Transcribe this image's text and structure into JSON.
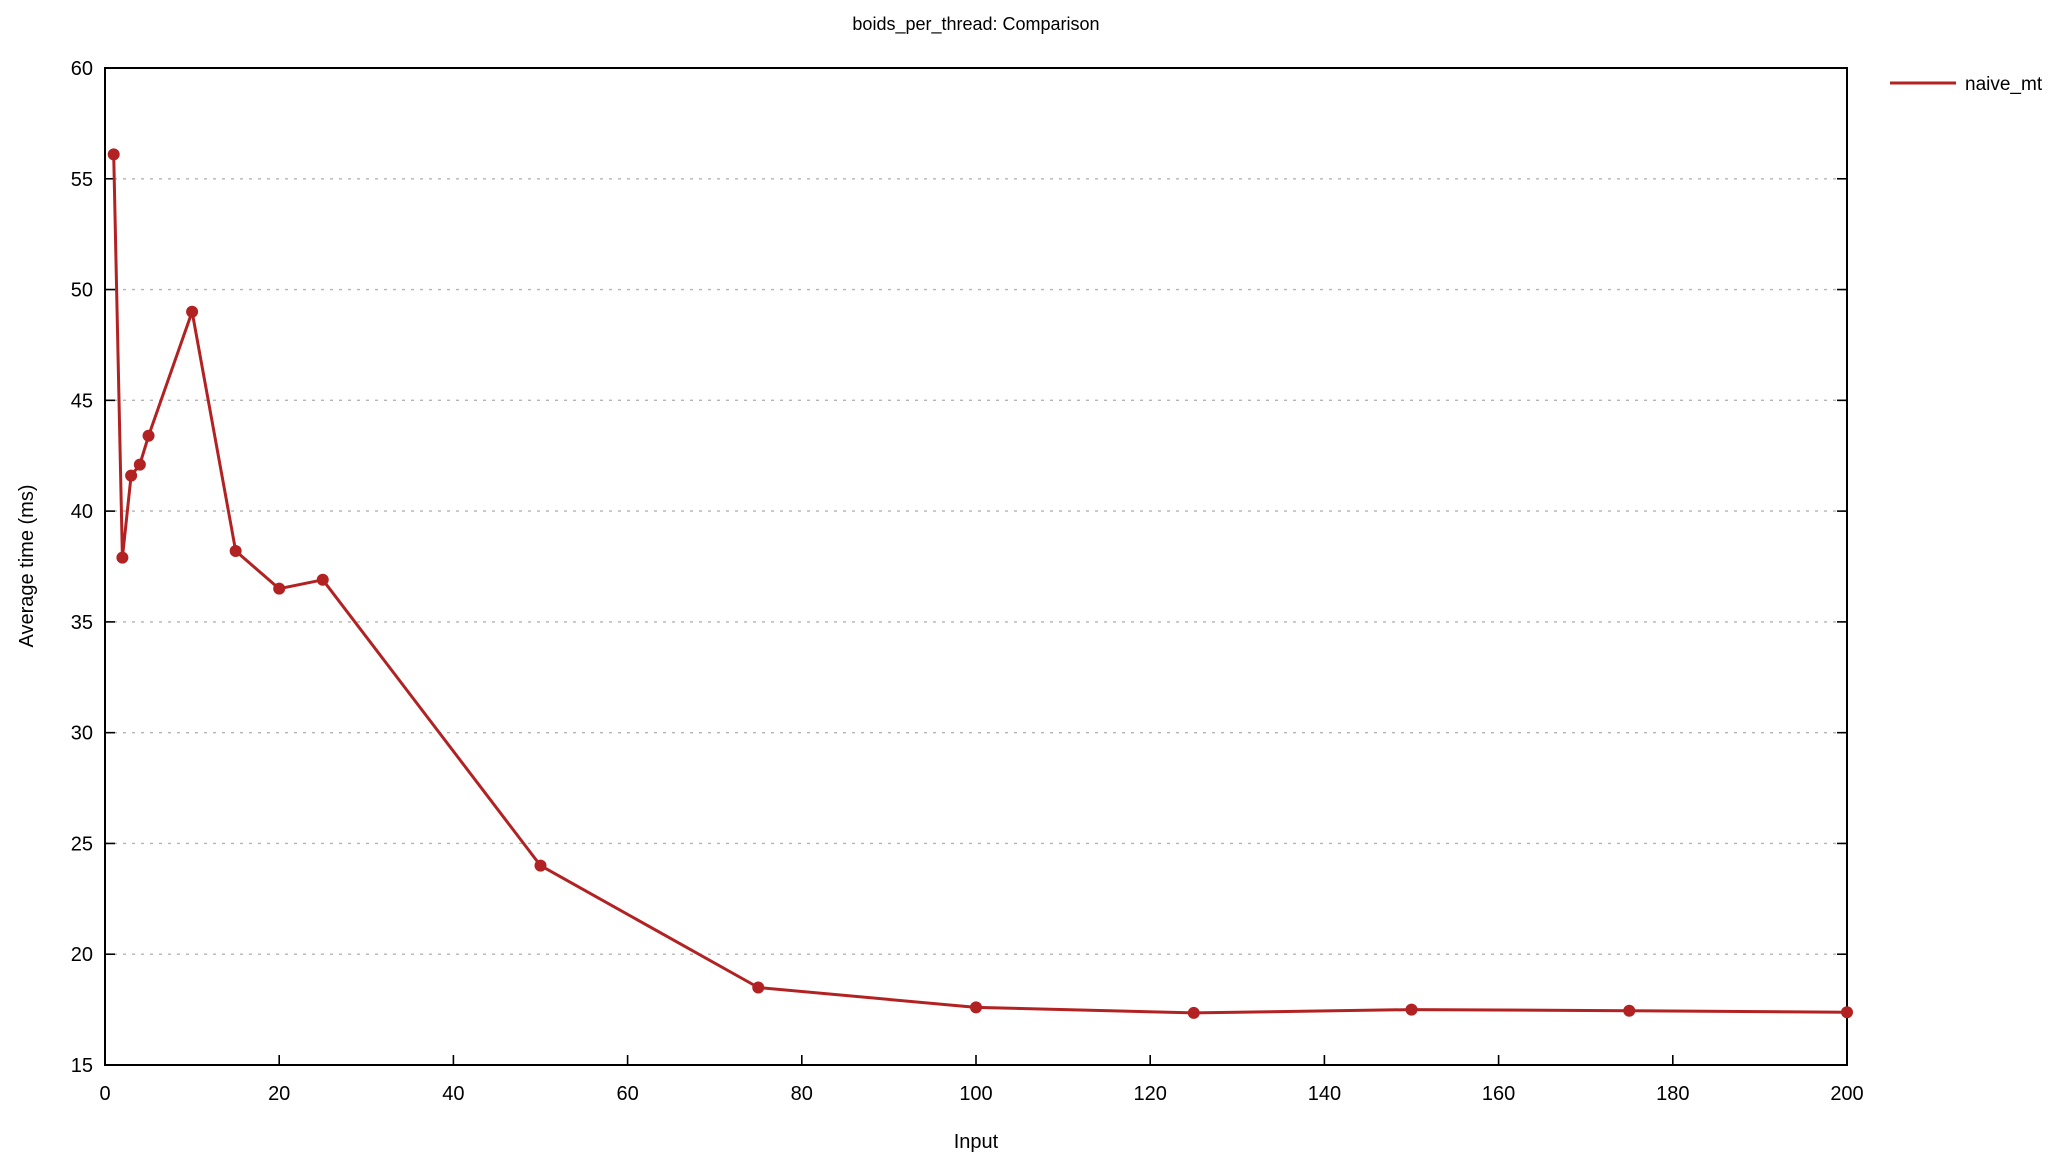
{
  "chart_data": {
    "type": "line",
    "title": "boids_per_thread: Comparison",
    "xlabel": "Input",
    "ylabel": "Average time (ms)",
    "xlim": [
      0,
      200
    ],
    "ylim": [
      15,
      60
    ],
    "x_ticks": [
      0,
      20,
      40,
      60,
      80,
      100,
      120,
      140,
      160,
      180,
      200
    ],
    "y_ticks": [
      15,
      20,
      25,
      30,
      35,
      40,
      45,
      50,
      55,
      60
    ],
    "grid": "horizontal dashed",
    "legend_position": "right, outside top",
    "series": [
      {
        "name": "naive_mt",
        "color": "#b22222",
        "x": [
          1,
          2,
          3,
          4,
          5,
          10,
          15,
          20,
          25,
          50,
          75,
          100,
          125,
          150,
          175,
          200
        ],
        "y": [
          56.1,
          37.9,
          41.6,
          42.1,
          43.4,
          49.0,
          38.2,
          36.5,
          36.9,
          24.0,
          18.5,
          17.6,
          17.35,
          17.5,
          17.45,
          17.38
        ]
      }
    ]
  }
}
